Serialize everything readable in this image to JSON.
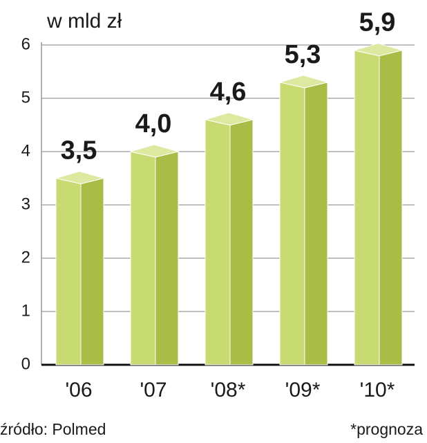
{
  "chart_data": {
    "type": "bar3d",
    "title": "w mld zł",
    "categories": [
      "'06",
      "'07",
      "'08*",
      "'09*",
      "'10*"
    ],
    "values": [
      3.5,
      4.0,
      4.6,
      5.3,
      5.9
    ],
    "value_labels": [
      "3,5",
      "4,0",
      "4,6",
      "5,3",
      "5,9"
    ],
    "colors": {
      "front": "#c8da72",
      "side": "#a8bc46",
      "top": "#dde8a0"
    },
    "ylim": [
      0,
      6
    ],
    "yticks": [
      0,
      1,
      2,
      3,
      4,
      5,
      6
    ],
    "grid": true,
    "source": "źródło: Polmed",
    "note": "*prognoza"
  }
}
